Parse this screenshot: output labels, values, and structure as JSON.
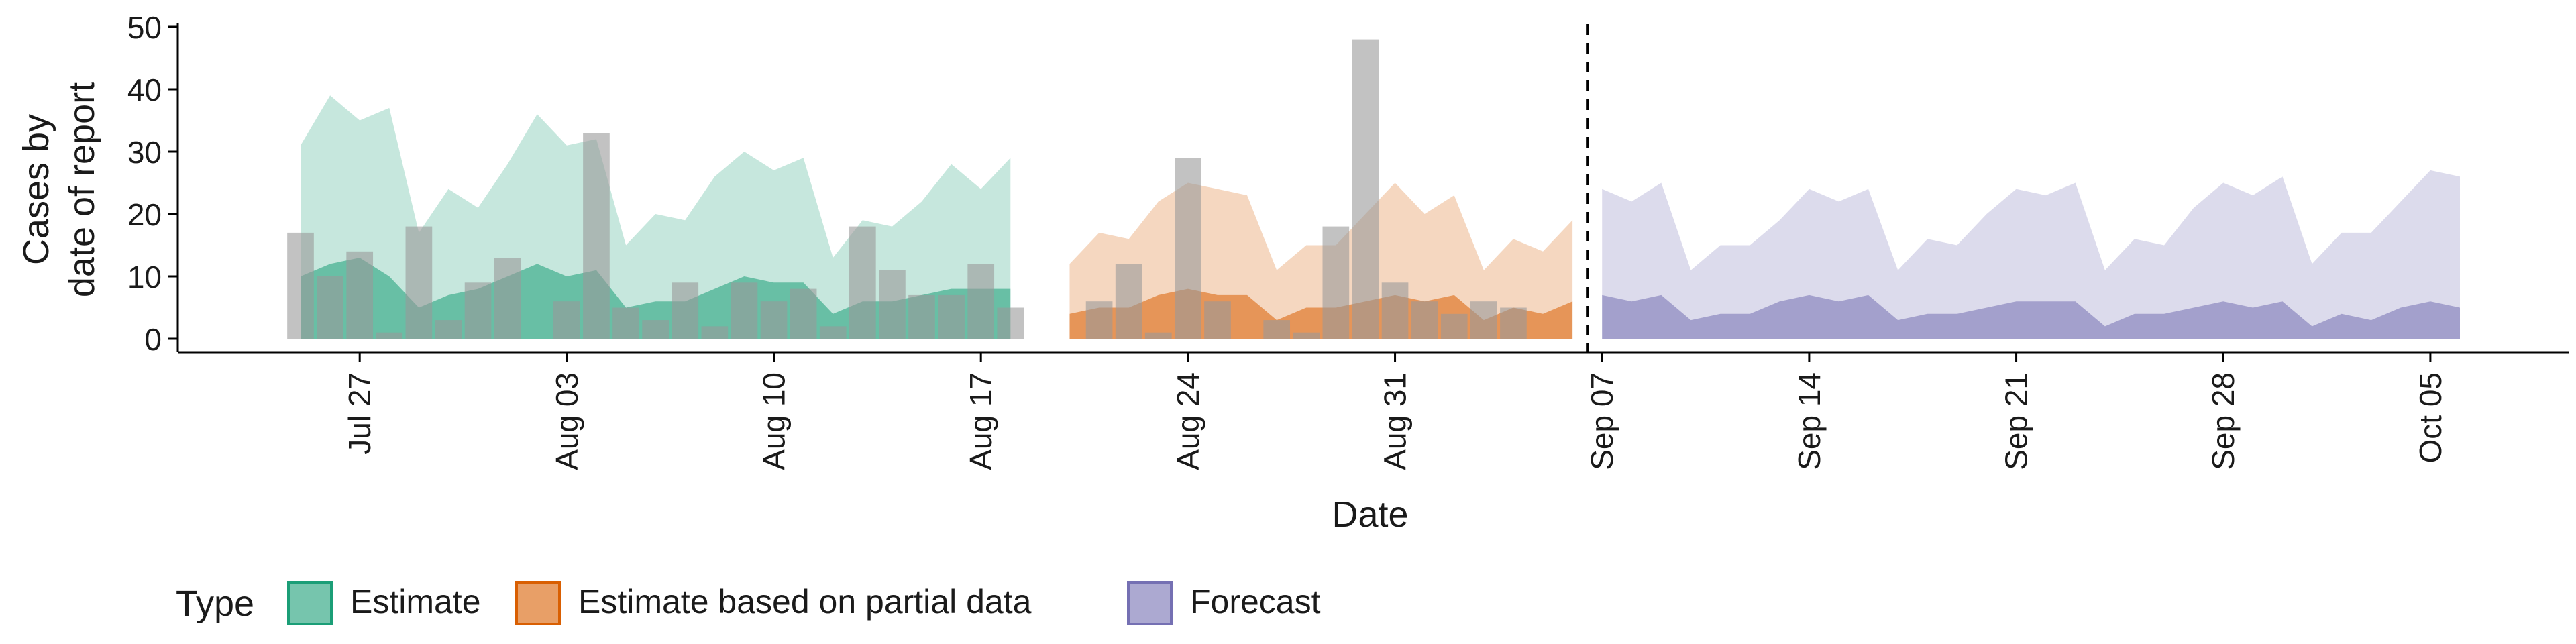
{
  "chart_data": {
    "type": "area",
    "xlabel": "Date",
    "ylabel_lines": [
      "Cases by",
      "date of report"
    ],
    "ylim": [
      0,
      50
    ],
    "yticks": [
      0,
      10,
      20,
      30,
      40,
      50
    ],
    "x_start": "2020-07-25",
    "x_end": "2020-10-06",
    "xticks": [
      {
        "date": "2020-07-27",
        "label": "Jul 27"
      },
      {
        "date": "2020-08-03",
        "label": "Aug 03"
      },
      {
        "date": "2020-08-10",
        "label": "Aug 10"
      },
      {
        "date": "2020-08-17",
        "label": "Aug 17"
      },
      {
        "date": "2020-08-24",
        "label": "Aug 24"
      },
      {
        "date": "2020-08-31",
        "label": "Aug 31"
      },
      {
        "date": "2020-09-07",
        "label": "Sep 07"
      },
      {
        "date": "2020-09-14",
        "label": "Sep 14"
      },
      {
        "date": "2020-09-21",
        "label": "Sep 21"
      },
      {
        "date": "2020-09-28",
        "label": "Sep 28"
      },
      {
        "date": "2020-10-05",
        "label": "Oct 05"
      }
    ],
    "forecast_cutoff": "2020-09-06",
    "legend": {
      "title": "Type",
      "position": "bottom-left",
      "entries": [
        {
          "label": "Estimate",
          "fill": "#1B9E77",
          "stroke": "#1B9E77"
        },
        {
          "label": "Estimate based on partial data",
          "fill": "#D95F02",
          "stroke": "#D95F02"
        },
        {
          "label": "Forecast",
          "fill": "#7570B3",
          "stroke": "#7570B3"
        }
      ]
    },
    "reported_cases": {
      "dates": [
        "2020-07-25",
        "2020-07-26",
        "2020-07-27",
        "2020-07-28",
        "2020-07-29",
        "2020-07-30",
        "2020-07-31",
        "2020-08-01",
        "2020-08-02",
        "2020-08-03",
        "2020-08-04",
        "2020-08-05",
        "2020-08-06",
        "2020-08-07",
        "2020-08-08",
        "2020-08-09",
        "2020-08-10",
        "2020-08-11",
        "2020-08-12",
        "2020-08-13",
        "2020-08-14",
        "2020-08-15",
        "2020-08-16",
        "2020-08-17",
        "2020-08-18",
        "2020-08-19",
        "2020-08-20",
        "2020-08-21",
        "2020-08-22",
        "2020-08-23",
        "2020-08-24",
        "2020-08-25",
        "2020-08-26",
        "2020-08-27",
        "2020-08-28",
        "2020-08-29",
        "2020-08-30",
        "2020-08-31",
        "2020-09-01",
        "2020-09-02",
        "2020-09-03",
        "2020-09-04",
        "2020-09-05"
      ],
      "values": [
        17,
        10,
        14,
        1,
        18,
        3,
        9,
        13,
        0,
        6,
        33,
        5,
        3,
        9,
        2,
        9,
        6,
        8,
        2,
        18,
        11,
        7,
        7,
        12,
        5,
        0,
        0,
        6,
        12,
        1,
        29,
        6,
        0,
        3,
        1,
        18,
        48,
        9,
        6,
        4,
        6,
        5,
        0
      ]
    },
    "series": [
      {
        "name": "Estimate",
        "dates": [
          "2020-07-25",
          "2020-07-26",
          "2020-07-27",
          "2020-07-28",
          "2020-07-29",
          "2020-07-30",
          "2020-07-31",
          "2020-08-01",
          "2020-08-02",
          "2020-08-03",
          "2020-08-04",
          "2020-08-05",
          "2020-08-06",
          "2020-08-07",
          "2020-08-08",
          "2020-08-09",
          "2020-08-10",
          "2020-08-11",
          "2020-08-12",
          "2020-08-13",
          "2020-08-14",
          "2020-08-15",
          "2020-08-16",
          "2020-08-17",
          "2020-08-18"
        ],
        "upper_90": [
          31,
          39,
          35,
          37,
          17,
          24,
          21,
          28,
          36,
          31,
          32,
          15,
          20,
          19,
          26,
          30,
          27,
          29,
          13,
          19,
          18,
          22,
          28,
          24,
          29
        ],
        "upper_50": [
          10,
          12,
          13,
          10,
          5,
          7,
          8,
          10,
          12,
          10,
          11,
          5,
          6,
          6,
          8,
          10,
          9,
          9,
          4,
          6,
          6,
          7,
          8,
          8,
          8
        ],
        "lower_50": [
          0,
          0,
          0,
          0,
          0,
          0,
          0,
          0,
          0,
          0,
          0,
          0,
          0,
          0,
          0,
          0,
          0,
          0,
          0,
          0,
          0,
          0,
          0,
          0,
          0
        ]
      },
      {
        "name": "Estimate based on partial data",
        "dates": [
          "2020-08-20",
          "2020-08-21",
          "2020-08-22",
          "2020-08-23",
          "2020-08-24",
          "2020-08-25",
          "2020-08-26",
          "2020-08-27",
          "2020-08-28",
          "2020-08-29",
          "2020-08-30",
          "2020-08-31",
          "2020-09-01",
          "2020-09-02",
          "2020-09-03",
          "2020-09-04",
          "2020-09-05",
          "2020-09-06"
        ],
        "upper_90": [
          12,
          17,
          16,
          22,
          25,
          24,
          23,
          11,
          15,
          15,
          20,
          25,
          20,
          23,
          11,
          16,
          14,
          19
        ],
        "upper_50": [
          4,
          5,
          5,
          7,
          8,
          7,
          7,
          3,
          5,
          5,
          6,
          7,
          6,
          7,
          3,
          5,
          4,
          6
        ],
        "lower_50": [
          0,
          0,
          0,
          0,
          0,
          0,
          0,
          0,
          0,
          0,
          0,
          0,
          0,
          0,
          0,
          0,
          0,
          0
        ]
      },
      {
        "name": "Forecast",
        "dates": [
          "2020-09-07",
          "2020-09-08",
          "2020-09-09",
          "2020-09-10",
          "2020-09-11",
          "2020-09-12",
          "2020-09-13",
          "2020-09-14",
          "2020-09-15",
          "2020-09-16",
          "2020-09-17",
          "2020-09-18",
          "2020-09-19",
          "2020-09-20",
          "2020-09-21",
          "2020-09-22",
          "2020-09-23",
          "2020-09-24",
          "2020-09-25",
          "2020-09-26",
          "2020-09-27",
          "2020-09-28",
          "2020-09-29",
          "2020-09-30",
          "2020-10-01",
          "2020-10-02",
          "2020-10-03",
          "2020-10-04",
          "2020-10-05",
          "2020-10-06"
        ],
        "upper_90": [
          24,
          22,
          25,
          11,
          15,
          15,
          19,
          24,
          22,
          24,
          11,
          16,
          15,
          20,
          24,
          23,
          25,
          11,
          16,
          15,
          21,
          25,
          23,
          26,
          12,
          17,
          17,
          22,
          27,
          26
        ],
        "upper_50": [
          7,
          6,
          7,
          3,
          4,
          4,
          6,
          7,
          6,
          7,
          3,
          4,
          4,
          5,
          6,
          6,
          6,
          2,
          4,
          4,
          5,
          6,
          5,
          6,
          2,
          4,
          3,
          5,
          6,
          5
        ],
        "lower_50": [
          0,
          0,
          0,
          0,
          0,
          0,
          0,
          0,
          0,
          0,
          0,
          0,
          0,
          0,
          0,
          0,
          0,
          0,
          0,
          0,
          0,
          0,
          0,
          0,
          0,
          0,
          0,
          0,
          0,
          0
        ]
      }
    ]
  }
}
